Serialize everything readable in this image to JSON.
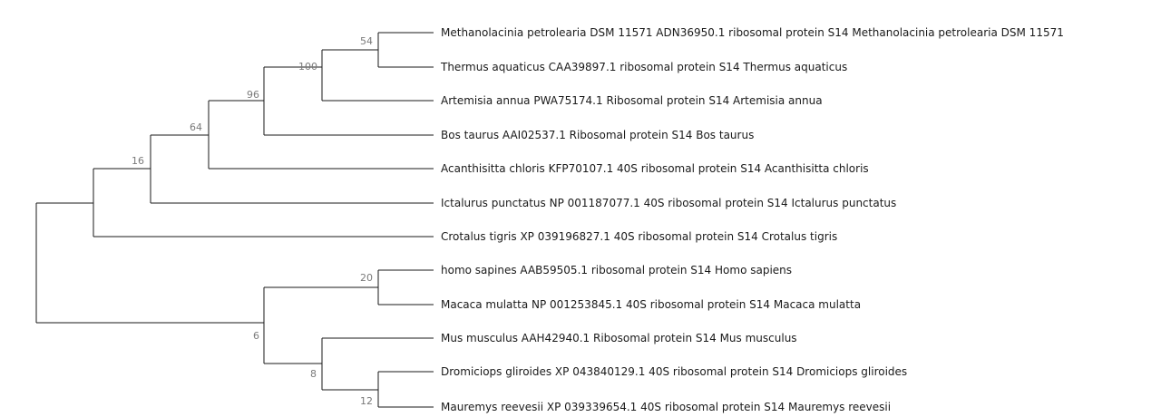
{
  "tree": {
    "leaves": [
      "Methanolacinia petrolearia DSM 11571 ADN36950.1 ribosomal protein S14 Methanolacinia petrolearia DSM 11571",
      "Thermus aquaticus CAA39897.1 ribosomal protein S14 Thermus aquaticus",
      "Artemisia annua PWA75174.1 Ribosomal protein S14 Artemisia annua",
      "Bos taurus AAI02537.1 Ribosomal protein S14 Bos taurus",
      "Acanthisitta chloris KFP70107.1 40S ribosomal protein S14 Acanthisitta chloris",
      "Ictalurus punctatus NP 001187077.1 40S ribosomal protein S14 Ictalurus punctatus",
      "Crotalus tigris XP 039196827.1 40S ribosomal protein S14 Crotalus tigris",
      "homo sapines AAB59505.1 ribosomal protein S14 Homo sapiens",
      "Macaca mulatta NP 001253845.1 40S ribosomal protein S14 Macaca mulatta",
      "Mus musculus AAH42940.1 Ribosomal protein S14 Mus musculus",
      "Dromiciops gliroides XP 043840129.1 40S ribosomal protein S14 Dromiciops gliroides",
      "Mauremys reevesii XP 039339654.1 40S ribosomal protein S14 Mauremys reevesii"
    ],
    "support": {
      "n54": "54",
      "n100": "100",
      "n96": "96",
      "n64": "64",
      "n16": "16",
      "n20": "20",
      "n12": "12",
      "n8": "8",
      "n6": "6"
    }
  }
}
